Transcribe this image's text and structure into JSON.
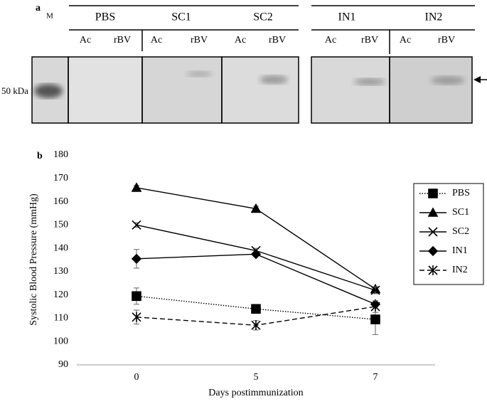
{
  "blot": {
    "panel_label": "a",
    "marker_lane": "M",
    "size_label": "50 kDa",
    "groups": [
      {
        "name": "PBS",
        "lanes": [
          "Ac",
          "rBV"
        ]
      },
      {
        "name": "SC1",
        "lanes": [
          "Ac",
          "rBV"
        ]
      },
      {
        "name": "SC2",
        "lanes": [
          "Ac",
          "rBV"
        ]
      },
      {
        "name": "IN1",
        "lanes": [
          "Ac",
          "rBV"
        ]
      },
      {
        "name": "IN2",
        "lanes": [
          "Ac",
          "rBV"
        ]
      }
    ]
  },
  "chart_data": {
    "type": "line",
    "panel_label": "b",
    "x_label": "Days postimmunization",
    "y_label": "Systolic Blood Pressure (mmHg)",
    "categories": [
      "0",
      "5",
      "7"
    ],
    "ylim": [
      90,
      180
    ],
    "yticks": [
      90,
      100,
      110,
      120,
      130,
      140,
      150,
      160,
      170,
      180
    ],
    "grid": false,
    "legend": "right",
    "series": [
      {
        "name": "PBS",
        "color": "#000000",
        "marker": "square",
        "linestyle": "dotted",
        "values": [
          119.5,
          114,
          109.5
        ],
        "errors": [
          3.5,
          1.5,
          6.5
        ]
      },
      {
        "name": "SC1",
        "color": "#000000",
        "marker": "triangle",
        "linestyle": "solid",
        "values": [
          166,
          157,
          122.5
        ],
        "errors": [
          1,
          1,
          1
        ]
      },
      {
        "name": "SC2",
        "color": "#000000",
        "marker": "x",
        "linestyle": "solid",
        "values": [
          150,
          139,
          122
        ],
        "errors": [
          1,
          1,
          1.5
        ]
      },
      {
        "name": "IN1",
        "color": "#000000",
        "marker": "diamond",
        "linestyle": "solid",
        "values": [
          135.5,
          137.5,
          116
        ],
        "errors": [
          4,
          1,
          1
        ]
      },
      {
        "name": "IN2",
        "color": "#000000",
        "marker": "asterisk",
        "linestyle": "dashed",
        "values": [
          110.5,
          107,
          115
        ],
        "errors": [
          3,
          2,
          2.5
        ]
      }
    ]
  }
}
